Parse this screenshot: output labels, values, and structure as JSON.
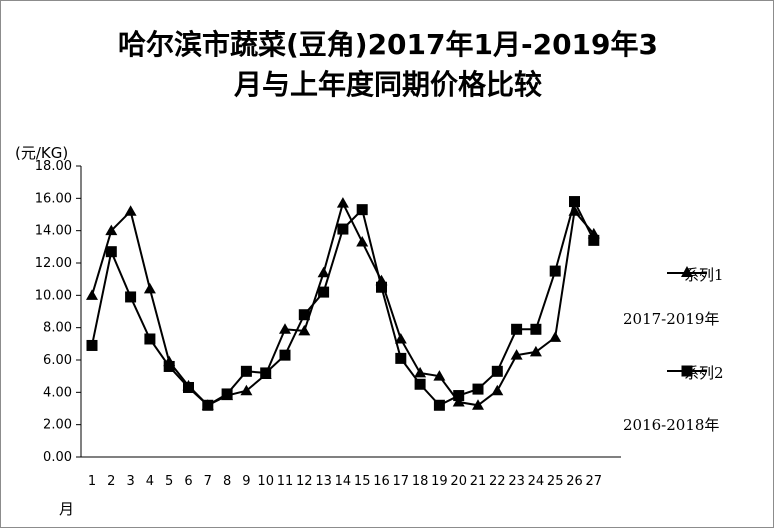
{
  "chart_data": {
    "type": "line",
    "title_line1": "哈尔滨市蔬菜(豆角)2017年1月-2019年3",
    "title_line2": "月与上年度同期价格比较",
    "ylabel": "(元/KG)",
    "xlabel": "月",
    "ylim": [
      0,
      18
    ],
    "y_ticks": [
      "0.00",
      "2.00",
      "4.00",
      "6.00",
      "8.00",
      "10.00",
      "12.00",
      "14.00",
      "16.00",
      "18.00"
    ],
    "categories": [
      "1",
      "2",
      "3",
      "4",
      "5",
      "6",
      "7",
      "8",
      "9",
      "10",
      "11",
      "12",
      "13",
      "14",
      "15",
      "16",
      "17",
      "18",
      "19",
      "20",
      "21",
      "22",
      "23",
      "24",
      "25",
      "26",
      "27"
    ],
    "series": [
      {
        "name": "系列1",
        "marker": "triangle",
        "values": [
          10.0,
          14.0,
          15.2,
          10.4,
          5.9,
          4.4,
          3.2,
          3.8,
          4.1,
          5.1,
          7.9,
          7.8,
          11.4,
          15.7,
          13.3,
          10.9,
          7.3,
          5.2,
          5.0,
          3.4,
          3.2,
          4.1,
          6.3,
          6.5,
          7.4,
          15.2,
          13.8
        ]
      },
      {
        "name": "系列2",
        "marker": "square",
        "values": [
          6.9,
          12.7,
          9.9,
          7.3,
          5.6,
          4.3,
          3.2,
          3.9,
          5.3,
          5.2,
          6.3,
          8.8,
          10.2,
          14.1,
          15.3,
          10.5,
          6.1,
          4.5,
          3.2,
          3.8,
          4.2,
          5.3,
          7.9,
          7.9,
          11.5,
          15.8,
          13.4
        ]
      }
    ],
    "legend_position": "right",
    "notes": [
      "2017-2019年",
      "2016-2018年"
    ],
    "grid": false
  }
}
